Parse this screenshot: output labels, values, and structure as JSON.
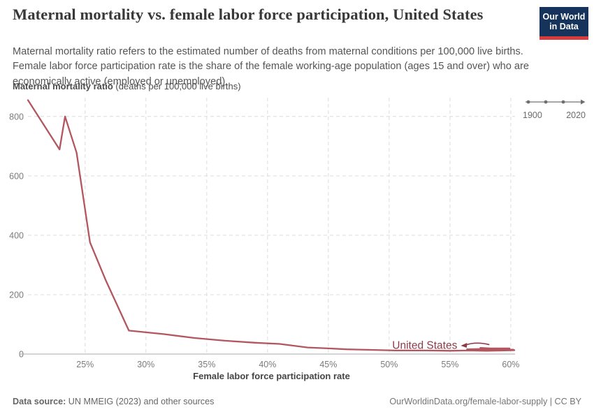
{
  "header": {
    "title": "Maternal mortality vs. female labor force participation, United States",
    "subtitle": "Maternal mortality ratio refers to the estimated number of deaths from maternal conditions per 100,000 live births. Female labor force participation rate is the share of the female working-age population (ages 15 and over) who are economically active (employed or unemployed).",
    "logo": {
      "line1": "Our World",
      "line2": "in Data",
      "bg_color": "#16335B",
      "accent_color": "#D93B3F"
    }
  },
  "timeline": {
    "start": "1900",
    "end": "2020"
  },
  "chart_data": {
    "type": "line",
    "title": "Maternal mortality vs. female labor force participation, United States",
    "xlabel": "Female labor force participation rate",
    "ylabel": "Maternal mortality ratio (deaths per 100,000 live births)",
    "ylabel_bold": "Maternal mortality ratio",
    "ylabel_rest": " (deaths per 100,000 live births)",
    "xlim": [
      20.3,
      60.35
    ],
    "ylim": [
      0,
      863
    ],
    "grid": true,
    "grid_color": "#dcdcdc",
    "axis_color": "#a8a8a8",
    "tick_color": "#7b7b7b",
    "x_ticks": [
      {
        "value": 25,
        "label": "25%"
      },
      {
        "value": 30,
        "label": "30%"
      },
      {
        "value": 35,
        "label": "35%"
      },
      {
        "value": 40,
        "label": "40%"
      },
      {
        "value": 45,
        "label": "45%"
      },
      {
        "value": 50,
        "label": "50%"
      },
      {
        "value": 55,
        "label": "55%"
      },
      {
        "value": 60,
        "label": "60%"
      }
    ],
    "y_ticks": [
      0,
      200,
      400,
      600,
      800
    ],
    "series": [
      {
        "name": "United States",
        "color": "#b2565f",
        "points": [
          [
            20.3,
            855
          ],
          [
            22.9,
            689
          ],
          [
            23.35,
            800
          ],
          [
            24.3,
            678
          ],
          [
            25.4,
            376
          ],
          [
            26.7,
            248
          ],
          [
            28.6,
            79
          ],
          [
            31.5,
            67
          ],
          [
            34.0,
            54
          ],
          [
            36.5,
            45
          ],
          [
            39.0,
            38
          ],
          [
            41.0,
            34
          ],
          [
            43.3,
            22
          ],
          [
            45.0,
            19
          ],
          [
            46.5,
            16
          ],
          [
            48.5,
            14
          ],
          [
            50.5,
            12
          ],
          [
            53.0,
            12
          ],
          [
            55.0,
            11
          ],
          [
            56.5,
            12
          ],
          [
            58.0,
            11
          ],
          [
            59.5,
            12
          ],
          [
            60.3,
            13
          ],
          [
            60.2,
            15
          ],
          [
            59.2,
            14
          ],
          [
            58.0,
            14
          ],
          [
            57.0,
            15
          ],
          [
            56.4,
            16
          ],
          [
            57.4,
            17
          ],
          [
            58.7,
            18
          ],
          [
            59.9,
            19
          ],
          [
            58.3,
            19
          ],
          [
            57.5,
            21
          ]
        ]
      }
    ],
    "annotation": {
      "label": "United States",
      "color": "#8e3b49",
      "x": 55.6,
      "y": 17.5
    }
  },
  "footer": {
    "source_bold": "Data source:",
    "source_text": " UN MMEIG (2023) and other sources",
    "credit": "OurWorldinData.org/female-labor-supply | CC BY"
  }
}
